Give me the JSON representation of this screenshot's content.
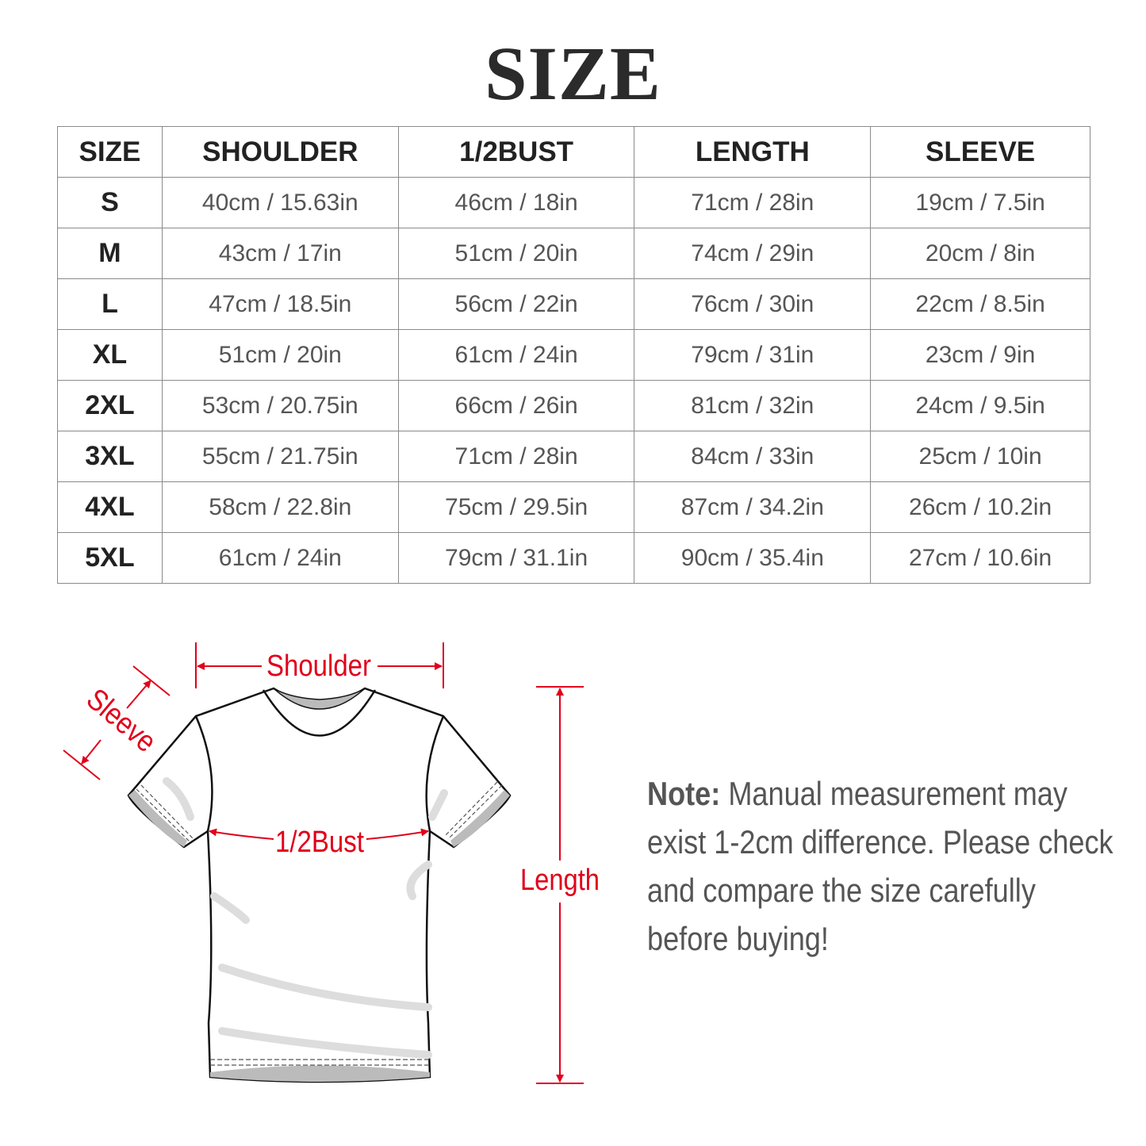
{
  "title": "SIZE",
  "table": {
    "headers": [
      "SIZE",
      "SHOULDER",
      "1/2BUST",
      "LENGTH",
      "SLEEVE"
    ],
    "rows": [
      [
        "S",
        "40cm / 15.63in",
        "46cm / 18in",
        "71cm / 28in",
        "19cm / 7.5in"
      ],
      [
        "M",
        "43cm / 17in",
        "51cm / 20in",
        "74cm / 29in",
        "20cm / 8in"
      ],
      [
        "L",
        "47cm / 18.5in",
        "56cm / 22in",
        "76cm / 30in",
        "22cm / 8.5in"
      ],
      [
        "XL",
        "51cm / 20in",
        "61cm / 24in",
        "79cm / 31in",
        "23cm / 9in"
      ],
      [
        "2XL",
        "53cm / 20.75in",
        "66cm / 26in",
        "81cm / 32in",
        "24cm / 9.5in"
      ],
      [
        "3XL",
        "55cm / 21.75in",
        "71cm / 28in",
        "84cm / 33in",
        "25cm / 10in"
      ],
      [
        "4XL",
        "58cm / 22.8in",
        "75cm / 29.5in",
        "87cm / 34.2in",
        "26cm / 10.2in"
      ],
      [
        "5XL",
        "61cm / 24in",
        "79cm / 31.1in",
        "90cm / 35.4in",
        "27cm / 10.6in"
      ]
    ]
  },
  "diagram": {
    "shoulder_label": "Shoulder",
    "sleeve_label": "Sleeve",
    "bust_label": "1/2Bust",
    "length_label": "Length",
    "annotation_color": "#e0001b",
    "icon": "t-shirt-outline"
  },
  "note": {
    "label": "Note:",
    "text": "Manual measurement may exist 1-2cm difference. Please check and compare the size carefully before buying!"
  }
}
